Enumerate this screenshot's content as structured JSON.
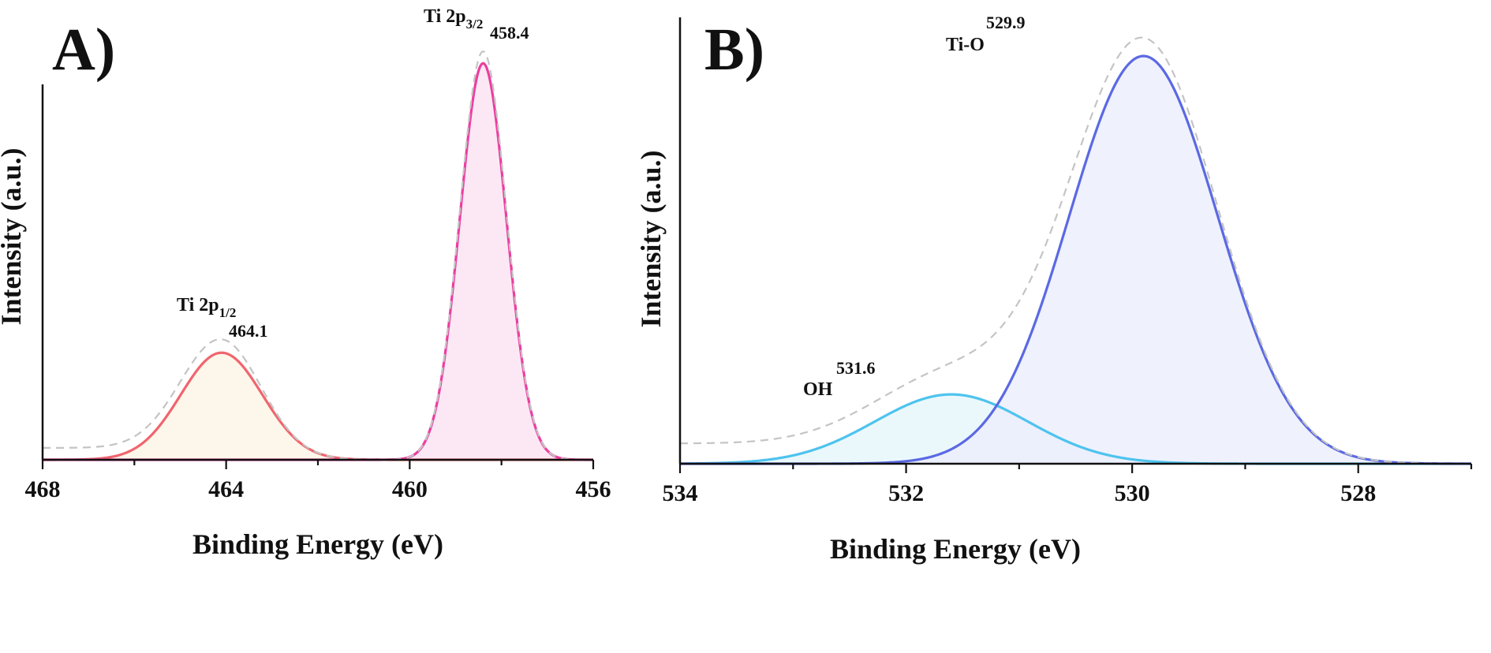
{
  "chart_data": [
    {
      "type": "line",
      "panel_label": "A)",
      "xlabel": "Binding Energy (eV)",
      "ylabel": "Intensity (a.u.)",
      "xlim": [
        468,
        456
      ],
      "x_reversed": true,
      "xticks": [
        468,
        464,
        460,
        456
      ],
      "ylim": [
        0,
        1.08
      ],
      "y_tick_labels": false,
      "series": [
        {
          "id": "ti-2p12-fit",
          "center": 464.1,
          "height": 0.27,
          "fwhm": 2.1,
          "color": "#f0656e",
          "fill": "#fdf4e6"
        },
        {
          "id": "ti-2p32-fit",
          "center": 458.4,
          "height": 1.0,
          "fwhm": 1.2,
          "color": "#ec3ea0",
          "fill": "#fbe4f3"
        }
      ],
      "envelope": {
        "id": "envelope",
        "style": "dashed",
        "color": "#c4c4c4"
      },
      "annotations": [
        {
          "id": "ti-2p12",
          "name": "Ti 2p",
          "subscript": "1/2",
          "value": "464.1"
        },
        {
          "id": "ti-2p32",
          "name": "Ti 2p",
          "subscript": "3/2",
          "value": "458.4"
        }
      ]
    },
    {
      "type": "line",
      "panel_label": "B)",
      "xlabel": "Binding Energy (eV)",
      "ylabel": "Intensity (a.u.)",
      "xlim": [
        534,
        527
      ],
      "x_reversed": true,
      "xticks": [
        534,
        532,
        530,
        528
      ],
      "ylim": [
        0,
        1.06
      ],
      "y_tick_labels": false,
      "series": [
        {
          "id": "oh-fit",
          "center": 531.6,
          "height": 0.17,
          "fwhm": 1.6,
          "color": "#4ec3ee",
          "fill": "#e6f7fc"
        },
        {
          "id": "ti-o-fit",
          "center": 529.9,
          "height": 1.0,
          "fwhm": 1.55,
          "color": "#5b69e3",
          "fill": "#eceffb"
        }
      ],
      "envelope": {
        "id": "envelope",
        "style": "dashed",
        "color": "#c4c4c4"
      },
      "annotations": [
        {
          "id": "oh",
          "name": "OH",
          "value": "531.6"
        },
        {
          "id": "ti-o",
          "name": "Ti-O",
          "value": "529.9"
        }
      ]
    }
  ]
}
